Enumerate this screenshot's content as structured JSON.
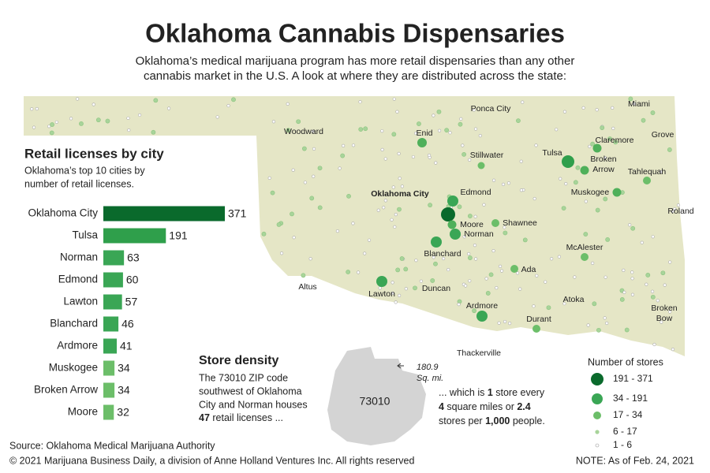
{
  "title": "Oklahoma Cannabis Dispensaries",
  "subtitle": [
    "Oklahoma’s medical marijuana program has more retail dispensaries than any other",
    "cannabis market in the U.S. A look at where they are distributed across the state:"
  ],
  "chart_data": {
    "type": "bar",
    "orientation": "horizontal",
    "title": "Retail licenses by city",
    "subtitle": [
      "Oklahoma’s top 10 cities by",
      "number of retail licenses."
    ],
    "categories": [
      "Oklahoma City",
      "Tulsa",
      "Norman",
      "Edmond",
      "Lawton",
      "Blanchard",
      "Ardmore",
      "Muskogee",
      "Broken Arrow",
      "Moore"
    ],
    "values": [
      371,
      191,
      63,
      60,
      57,
      46,
      41,
      34,
      34,
      32
    ],
    "colors": [
      "#0a6a2c",
      "#2f9f4b",
      "#3aa655",
      "#3aa655",
      "#3aa655",
      "#3aa655",
      "#3aa655",
      "#6cbe69",
      "#6cbe69",
      "#6cbe69"
    ]
  },
  "map": {
    "labels": [
      "Ponca City",
      "Miami",
      "Woodward",
      "Enid",
      "Claremore",
      "Grove",
      "Stillwater",
      "Tulsa",
      "Broken",
      "Arrow",
      "Tahlequah",
      "Oklahoma City",
      "Edmond",
      "Muskogee",
      "Roland",
      "Shawnee",
      "Moore",
      "Norman",
      "Blanchard",
      "McAlester",
      "Ada",
      "Altus",
      "Lawton",
      "Duncan",
      "Atoka",
      "Ardmore",
      "Broken",
      "Bow",
      "Durant",
      "Thackerville"
    ],
    "legend": {
      "title": "Number of stores",
      "entries": [
        "191 - 371",
        "34 - 191",
        "17 - 34",
        "6 - 17",
        "1 - 6"
      ]
    }
  },
  "store_density": {
    "title": "Store density",
    "left": [
      "The 73010 ZIP code",
      "southwest of Oklahoma",
      "City and Norman houses",
      [
        "47",
        " retail licenses ..."
      ]
    ],
    "zip": "73010",
    "area": [
      "180.9",
      "Sq. mi."
    ],
    "right": [
      [
        "... which is ",
        "1",
        " store every"
      ],
      [
        "4",
        " square miles or ",
        "2.4"
      ],
      [
        "stores per ",
        "1,000",
        " people."
      ]
    ]
  },
  "source": "Source: Oklahoma Medical Marijuana Authority",
  "copyright": "© 2021 Marijuana Business Daily, a division of Anne Holland Ventures Inc. All rights reserved",
  "note": "NOTE: As of Feb. 24, 2021"
}
